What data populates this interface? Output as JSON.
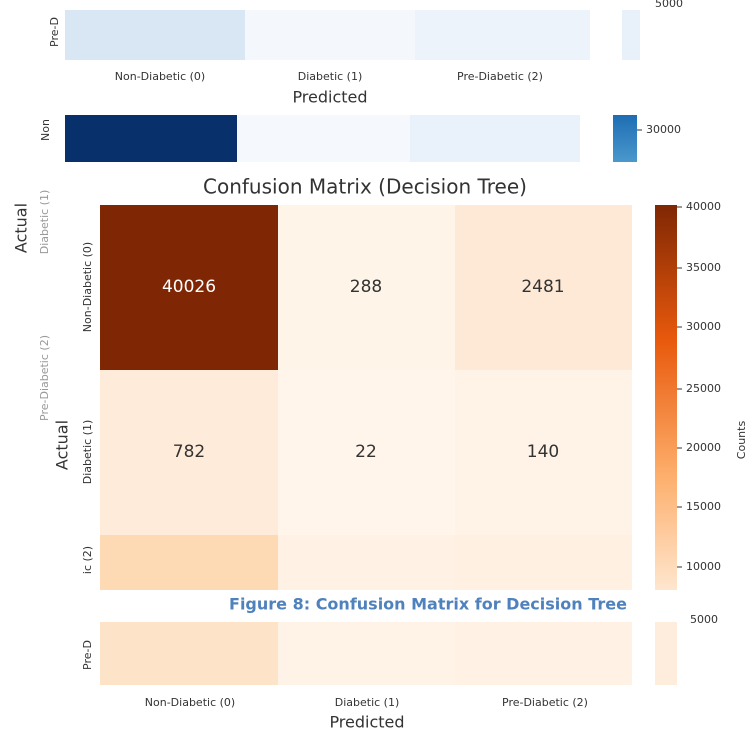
{
  "top_fragment": {
    "row_label": "Pre-D",
    "colorbar_tick": "5000",
    "x_labels": [
      "Non-Diabetic (0)",
      "Diabetic (1)",
      "Pre-Diabetic (2)"
    ],
    "x_axis_label": "Predicted"
  },
  "middle_fragment": {
    "row_label": "Non",
    "colorbar_tick": "30000"
  },
  "main_chart": {
    "title": "Confusion Matrix (Decision Tree)",
    "y_axis_label": "Actual",
    "overlap_labels": {
      "y_axis_label": "Actual",
      "row_labels": [
        "Diabetic (1)",
        "Pre-Diabetic (2)"
      ]
    },
    "row_labels": [
      "Non-Diabetic (0)",
      "Diabetic (1)",
      "ic (2)"
    ],
    "cells": [
      [
        "40026",
        "288",
        "2481"
      ],
      [
        "782",
        "22",
        "140"
      ]
    ],
    "colorbar_ticks": [
      "40000",
      "35000",
      "30000",
      "25000",
      "20000",
      "15000",
      "10000"
    ],
    "colorbar_label": "Counts"
  },
  "caption": "Figure 8: Confusion Matrix for Decision Tree",
  "bottom_fragment": {
    "row_label": "Pre-D",
    "colorbar_tick": "5000",
    "x_labels": [
      "Non-Diabetic (0)",
      "Diabetic (1)",
      "Pre-Diabetic (2)"
    ],
    "x_axis_label": "Predicted"
  }
}
